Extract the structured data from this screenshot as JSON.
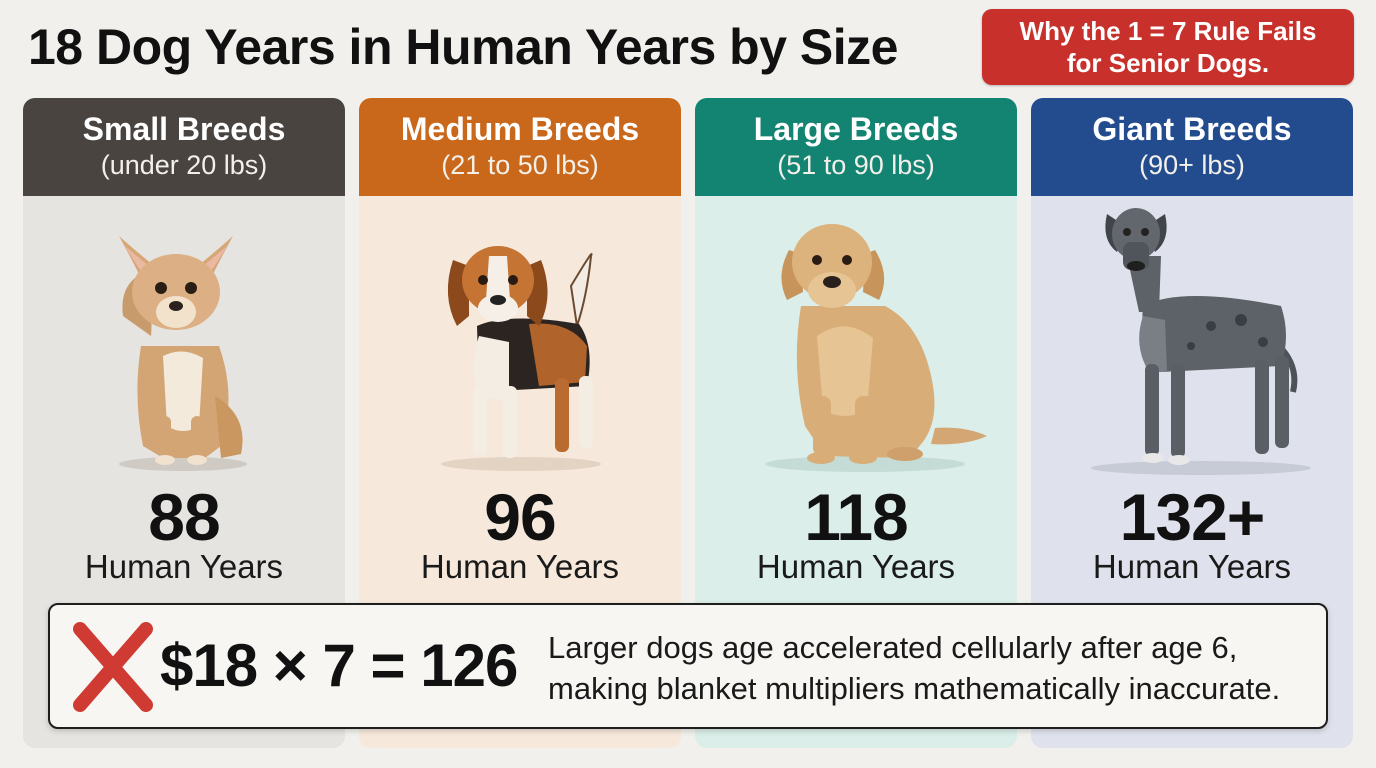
{
  "title": "18 Dog Years in Human Years by Size",
  "callout": {
    "line1": "Why the 1 = 7 Rule Fails",
    "line2": "for Senior Dogs."
  },
  "breeds": [
    {
      "name": "Small Breeds",
      "range": "(under 20 lbs)",
      "age": "88",
      "unit": "Human Years",
      "header_color": "#4a4441",
      "dog_icon": "chihuahua-illustration"
    },
    {
      "name": "Medium Breeds",
      "range": "(21 to 50 lbs)",
      "age": "96",
      "unit": "Human Years",
      "header_color": "#c9681b",
      "dog_icon": "beagle-illustration"
    },
    {
      "name": "Large Breeds",
      "range": "(51 to 90 lbs)",
      "age": "118",
      "unit": "Human Years",
      "header_color": "#138472",
      "dog_icon": "labrador-illustration"
    },
    {
      "name": "Giant Breeds",
      "range": "(90+ lbs)",
      "age": "132+",
      "unit": "Human Years",
      "header_color": "#234c8f",
      "dog_icon": "great-dane-illustration"
    }
  ],
  "bottom": {
    "icon": "red-x-icon",
    "equation": "$18 × 7 = 126",
    "note_line1": "Larger dogs age accelerated cellularly after age 6,",
    "note_line2": "making blanket multipliers mathematically inaccurate."
  },
  "colors": {
    "callout": "#c8302c",
    "x_mark": "#cf3a33"
  }
}
